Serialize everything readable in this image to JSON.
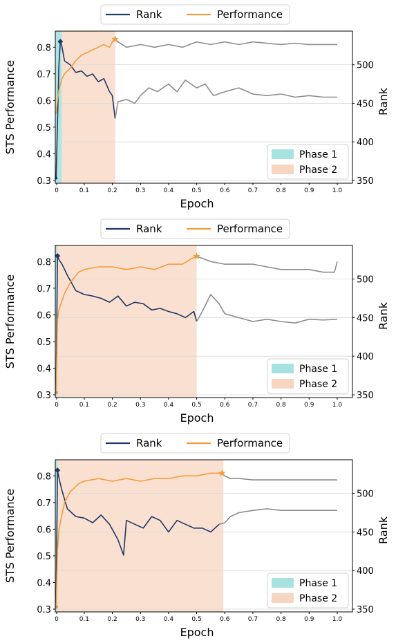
{
  "chart_data": [
    {
      "type": "line",
      "xlabel": "Epoch",
      "ylabel_left": "STS Performance",
      "ylabel_right": "Rank",
      "xlim": [
        0,
        1.0
      ],
      "ylim_left": [
        0.3,
        0.85
      ],
      "ylim_right": [
        350,
        540
      ],
      "xticks": [
        0,
        0.1,
        0.2,
        0.3,
        0.4,
        0.5,
        0.6,
        0.7,
        0.8,
        0.9,
        1.0
      ],
      "xtick_labels": [
        "0",
        "0.1",
        "0.2",
        "0.3",
        "0.4",
        "0.5",
        "0.6",
        "0.7",
        "0.8",
        "0.9",
        "1.0"
      ],
      "yticks_left": [
        "0.3",
        "0.4",
        "0.5",
        "0.6",
        "0.7",
        "0.8"
      ],
      "yticks_right": [
        "350",
        "400",
        "450",
        "500"
      ],
      "legend_top": [
        "Rank",
        "Performance"
      ],
      "legend_phase": [
        "Phase 1",
        "Phase 2"
      ],
      "legend_placement": "lower-right",
      "grid": "horizontal-right-axis",
      "phases": [
        {
          "name": "Phase 1",
          "start": 0.0,
          "end": 0.02
        },
        {
          "name": "Phase 2",
          "start": 0.02,
          "end": 0.21
        }
      ],
      "transition_epoch": 0.21,
      "series": [
        {
          "name": "Rank",
          "axis": "right",
          "x": [
            0,
            0.01,
            0.015,
            0.02,
            0.03,
            0.05,
            0.07,
            0.09,
            0.11,
            0.13,
            0.15,
            0.17,
            0.19,
            0.2,
            0.21,
            0.22,
            0.25,
            0.28,
            0.3,
            0.33,
            0.36,
            0.4,
            0.43,
            0.46,
            0.5,
            0.53,
            0.56,
            0.6,
            0.65,
            0.7,
            0.75,
            0.8,
            0.85,
            0.9,
            0.95,
            1.0
          ],
          "y": [
            353,
            500,
            530,
            525,
            505,
            500,
            490,
            492,
            485,
            488,
            478,
            482,
            465,
            460,
            430,
            452,
            455,
            450,
            460,
            470,
            465,
            475,
            465,
            480,
            470,
            475,
            460,
            465,
            470,
            462,
            460,
            462,
            458,
            460,
            458,
            458
          ]
        },
        {
          "name": "Performance",
          "axis": "left",
          "x": [
            0,
            0.005,
            0.01,
            0.02,
            0.03,
            0.05,
            0.07,
            0.09,
            0.11,
            0.13,
            0.15,
            0.17,
            0.19,
            0.2,
            0.21,
            0.22,
            0.25,
            0.3,
            0.35,
            0.4,
            0.45,
            0.5,
            0.55,
            0.6,
            0.65,
            0.7,
            0.75,
            0.8,
            0.85,
            0.9,
            0.95,
            1.0
          ],
          "y": [
            0.55,
            0.6,
            0.64,
            0.68,
            0.7,
            0.72,
            0.75,
            0.77,
            0.78,
            0.79,
            0.8,
            0.81,
            0.8,
            0.82,
            0.83,
            0.82,
            0.8,
            0.81,
            0.8,
            0.81,
            0.8,
            0.82,
            0.81,
            0.82,
            0.81,
            0.82,
            0.815,
            0.81,
            0.815,
            0.81,
            0.81,
            0.81
          ]
        }
      ]
    },
    {
      "type": "line",
      "xlabel": "Epoch",
      "ylabel_left": "STS Performance",
      "ylabel_right": "Rank",
      "xlim": [
        0,
        1.0
      ],
      "ylim_left": [
        0.3,
        0.85
      ],
      "ylim_right": [
        350,
        540
      ],
      "xticks": [
        0,
        0.1,
        0.2,
        0.3,
        0.4,
        0.5,
        0.6,
        0.7,
        0.8,
        0.9,
        1.0
      ],
      "xtick_labels": [
        "0",
        "0.1",
        "0.2",
        "0.3",
        "0.4",
        "0.5",
        "0.6",
        "0.7",
        "0.8",
        "0.9",
        "1.0"
      ],
      "yticks_left": [
        "0.3",
        "0.4",
        "0.5",
        "0.6",
        "0.7",
        "0.8"
      ],
      "yticks_right": [
        "350",
        "400",
        "450",
        "500"
      ],
      "legend_top": [
        "Rank",
        "Performance"
      ],
      "legend_phase": [
        "Phase 1",
        "Phase 2"
      ],
      "legend_placement": "lower-right",
      "grid": "horizontal-right-axis",
      "phases": [
        {
          "name": "Phase 1",
          "start": 0.0,
          "end": 0.003
        },
        {
          "name": "Phase 2",
          "start": 0.003,
          "end": 0.5
        }
      ],
      "transition_epoch": 0.5,
      "series": [
        {
          "name": "Rank",
          "axis": "right",
          "x": [
            0,
            0.005,
            0.01,
            0.02,
            0.04,
            0.07,
            0.1,
            0.13,
            0.16,
            0.19,
            0.22,
            0.25,
            0.28,
            0.31,
            0.34,
            0.37,
            0.4,
            0.43,
            0.46,
            0.49,
            0.5,
            0.52,
            0.55,
            0.58,
            0.6,
            0.65,
            0.7,
            0.75,
            0.8,
            0.85,
            0.9,
            0.95,
            1.0
          ],
          "y": [
            353,
            530,
            525,
            520,
            505,
            485,
            480,
            478,
            475,
            470,
            478,
            465,
            470,
            468,
            460,
            462,
            458,
            455,
            450,
            458,
            445,
            458,
            480,
            468,
            455,
            450,
            445,
            448,
            445,
            443,
            448,
            447,
            448
          ]
        },
        {
          "name": "Performance",
          "axis": "left",
          "x": [
            0,
            0.005,
            0.01,
            0.02,
            0.03,
            0.05,
            0.08,
            0.1,
            0.15,
            0.2,
            0.25,
            0.3,
            0.35,
            0.4,
            0.45,
            0.48,
            0.5,
            0.55,
            0.6,
            0.65,
            0.7,
            0.75,
            0.8,
            0.85,
            0.9,
            0.95,
            0.99,
            1.0
          ],
          "y": [
            0.3,
            0.58,
            0.62,
            0.65,
            0.68,
            0.72,
            0.76,
            0.77,
            0.78,
            0.78,
            0.77,
            0.78,
            0.77,
            0.79,
            0.79,
            0.81,
            0.82,
            0.8,
            0.79,
            0.79,
            0.79,
            0.78,
            0.77,
            0.77,
            0.77,
            0.76,
            0.76,
            0.8
          ]
        }
      ]
    },
    {
      "type": "line",
      "xlabel": "Epoch",
      "ylabel_left": "STS Performance",
      "ylabel_right": "Rank",
      "xlim": [
        0,
        1.0
      ],
      "ylim_left": [
        0.3,
        0.85
      ],
      "ylim_right": [
        350,
        540
      ],
      "xticks": [
        0,
        0.1,
        0.2,
        0.3,
        0.4,
        0.5,
        0.6,
        0.7,
        0.8,
        0.9,
        1.0
      ],
      "xtick_labels": [
        "0",
        "0.1",
        "0.2",
        "0.3",
        "0.4",
        "0.5",
        "0.6",
        "0.7",
        "0.8",
        "0.9",
        "1.0"
      ],
      "yticks_left": [
        "0.3",
        "0.4",
        "0.5",
        "0.6",
        "0.7",
        "0.8"
      ],
      "yticks_right": [
        "350",
        "400",
        "450",
        "500"
      ],
      "legend_top": [
        "Rank",
        "Performance"
      ],
      "legend_phase": [
        "Phase 1",
        "Phase 2"
      ],
      "legend_placement": "lower-right",
      "grid": "horizontal-right-axis",
      "phases": [
        {
          "name": "Phase 1",
          "start": 0.0,
          "end": 0.003
        },
        {
          "name": "Phase 2",
          "start": 0.003,
          "end": 0.595
        }
      ],
      "transition_epoch": 0.595,
      "series": [
        {
          "name": "Rank",
          "axis": "right",
          "x": [
            0,
            0.005,
            0.01,
            0.02,
            0.04,
            0.07,
            0.1,
            0.13,
            0.16,
            0.19,
            0.22,
            0.24,
            0.25,
            0.28,
            0.31,
            0.34,
            0.37,
            0.4,
            0.43,
            0.46,
            0.49,
            0.52,
            0.55,
            0.58,
            0.6,
            0.62,
            0.65,
            0.7,
            0.75,
            0.8,
            0.85,
            0.9,
            0.95,
            1.0
          ],
          "y": [
            353,
            530,
            520,
            505,
            480,
            470,
            468,
            462,
            472,
            460,
            440,
            420,
            465,
            460,
            455,
            470,
            465,
            450,
            465,
            460,
            455,
            455,
            450,
            460,
            462,
            470,
            475,
            478,
            480,
            478,
            478,
            478,
            478,
            478
          ]
        },
        {
          "name": "Performance",
          "axis": "left",
          "x": [
            0,
            0.005,
            0.01,
            0.02,
            0.03,
            0.05,
            0.08,
            0.1,
            0.15,
            0.2,
            0.25,
            0.3,
            0.35,
            0.4,
            0.45,
            0.5,
            0.55,
            0.59,
            0.6,
            0.62,
            0.65,
            0.7,
            0.75,
            0.8,
            0.85,
            0.9,
            0.95,
            1.0
          ],
          "y": [
            0.3,
            0.52,
            0.6,
            0.65,
            0.7,
            0.74,
            0.77,
            0.78,
            0.79,
            0.78,
            0.79,
            0.78,
            0.79,
            0.79,
            0.8,
            0.8,
            0.81,
            0.81,
            0.8,
            0.79,
            0.79,
            0.785,
            0.785,
            0.785,
            0.785,
            0.785,
            0.785,
            0.785
          ]
        }
      ]
    }
  ],
  "colors": {
    "rank": "#1f3864",
    "performance": "#f39c3a",
    "after_transition": "#8c8c8c",
    "phase1": "#a6e3e0",
    "phase2": "#f8d5c0",
    "grid": "#d9d9d9"
  }
}
